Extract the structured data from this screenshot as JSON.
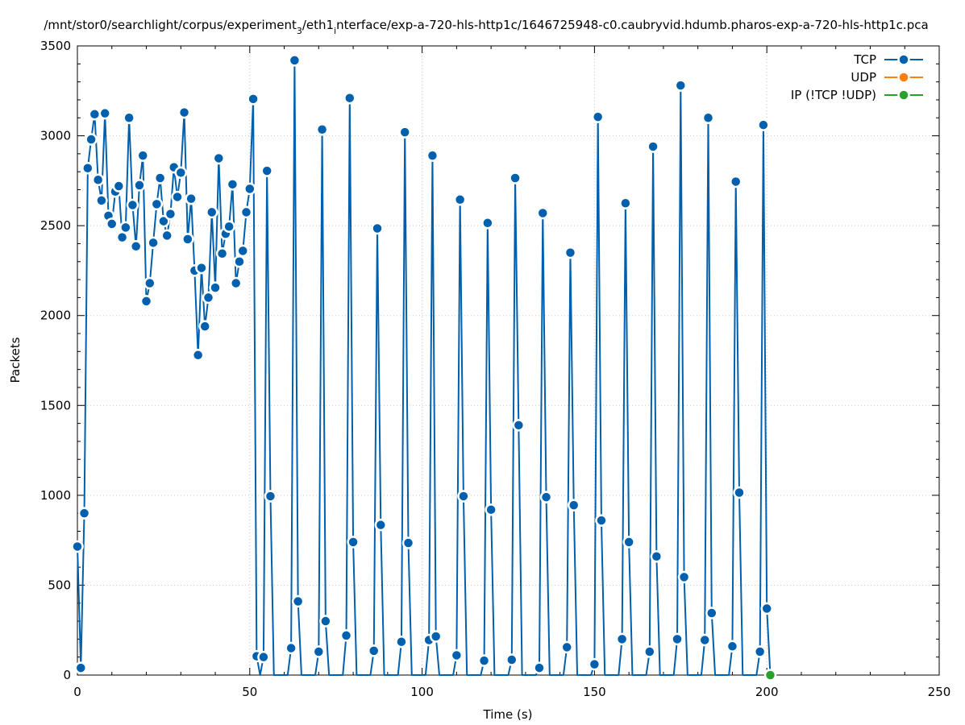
{
  "chart_data": {
    "type": "line",
    "title": "/mnt/stor0/searchlight/corpus/experiment_3/eth1_interface/exp-a-720-hls-http1c/1646725948-c0.caubryvid.hdumb.pharos-exp-a-720-hls-http1c.pcap",
    "title_parts": {
      "a": "/mnt/stor0/searchlight/corpus/experiment",
      "sub1": "3",
      "b": "/eth1",
      "sub2": "i",
      "c": "nterface/exp-a-720-hls-http1c/1646725948-c0.caubryvid.hdumb.pharos-exp-a-720-hls-http1c.pca"
    },
    "xlabel": "Time (s)",
    "ylabel": "Packets",
    "xlim": [
      0,
      250
    ],
    "ylim": [
      0,
      3500
    ],
    "xticks": [
      "0",
      "50",
      "100",
      "150",
      "200",
      "250"
    ],
    "yticks": [
      "0",
      "500",
      "1000",
      "1500",
      "2000",
      "2500",
      "3000",
      "3500"
    ],
    "grid": true,
    "legend_position": "top-right",
    "series": [
      {
        "name": "TCP",
        "color": "#0060ad",
        "points": [
          [
            0,
            715
          ],
          [
            1,
            40
          ],
          [
            2,
            900
          ],
          [
            3,
            2820
          ],
          [
            4,
            2980
          ],
          [
            5,
            3120
          ],
          [
            6,
            2755
          ],
          [
            7,
            2640
          ],
          [
            8,
            3125
          ],
          [
            9,
            2555
          ],
          [
            10,
            2510
          ],
          [
            11,
            2690
          ],
          [
            12,
            2720
          ],
          [
            13,
            2435
          ],
          [
            14,
            2490
          ],
          [
            15,
            3100
          ],
          [
            16,
            2615
          ],
          [
            17,
            2385
          ],
          [
            18,
            2725
          ],
          [
            19,
            2890
          ],
          [
            20,
            2080
          ],
          [
            21,
            2180
          ],
          [
            22,
            2405
          ],
          [
            23,
            2620
          ],
          [
            24,
            2765
          ],
          [
            25,
            2525
          ],
          [
            26,
            2445
          ],
          [
            27,
            2565
          ],
          [
            28,
            2825
          ],
          [
            29,
            2660
          ],
          [
            30,
            2795
          ],
          [
            31,
            3130
          ],
          [
            32,
            2425
          ],
          [
            33,
            2650
          ],
          [
            34,
            2250
          ],
          [
            35,
            1780
          ],
          [
            36,
            2265
          ],
          [
            37,
            1940
          ],
          [
            38,
            2100
          ],
          [
            39,
            2575
          ],
          [
            40,
            2155
          ],
          [
            41,
            2875
          ],
          [
            42,
            2345
          ],
          [
            43,
            2455
          ],
          [
            44,
            2495
          ],
          [
            45,
            2730
          ],
          [
            46,
            2180
          ],
          [
            47,
            2300
          ],
          [
            48,
            2360
          ],
          [
            49,
            2575
          ],
          [
            50,
            2705
          ],
          [
            51,
            3205
          ],
          [
            52,
            105
          ],
          [
            53,
            0
          ],
          [
            54,
            100
          ],
          [
            55,
            2805
          ],
          [
            56,
            995
          ],
          [
            57,
            0
          ],
          [
            61,
            0
          ],
          [
            62,
            150
          ],
          [
            63,
            3420
          ],
          [
            64,
            410
          ],
          [
            65,
            0
          ],
          [
            69,
            0
          ],
          [
            70,
            130
          ],
          [
            71,
            3035
          ],
          [
            72,
            300
          ],
          [
            73,
            0
          ],
          [
            77,
            0
          ],
          [
            78,
            220
          ],
          [
            79,
            3210
          ],
          [
            80,
            740
          ],
          [
            81,
            0
          ],
          [
            85,
            0
          ],
          [
            86,
            135
          ],
          [
            87,
            2485
          ],
          [
            88,
            835
          ],
          [
            89,
            0
          ],
          [
            93,
            0
          ],
          [
            94,
            185
          ],
          [
            95,
            3020
          ],
          [
            96,
            735
          ],
          [
            97,
            0
          ],
          [
            101,
            0
          ],
          [
            102,
            195
          ],
          [
            103,
            2890
          ],
          [
            104,
            215
          ],
          [
            105,
            0
          ],
          [
            109,
            0
          ],
          [
            110,
            110
          ],
          [
            111,
            2645
          ],
          [
            112,
            995
          ],
          [
            113,
            0
          ],
          [
            117,
            0
          ],
          [
            118,
            80
          ],
          [
            119,
            2515
          ],
          [
            120,
            920
          ],
          [
            121,
            0
          ],
          [
            125,
            0
          ],
          [
            126,
            85
          ],
          [
            127,
            2765
          ],
          [
            128,
            1390
          ],
          [
            129,
            0
          ],
          [
            133,
            0
          ],
          [
            134,
            40
          ],
          [
            135,
            2570
          ],
          [
            136,
            990
          ],
          [
            137,
            0
          ],
          [
            141,
            0
          ],
          [
            142,
            155
          ],
          [
            143,
            2350
          ],
          [
            144,
            945
          ],
          [
            145,
            0
          ],
          [
            149,
            0
          ],
          [
            150,
            60
          ],
          [
            151,
            3105
          ],
          [
            152,
            860
          ],
          [
            153,
            0
          ],
          [
            157,
            0
          ],
          [
            158,
            200
          ],
          [
            159,
            2625
          ],
          [
            160,
            740
          ],
          [
            161,
            0
          ],
          [
            165,
            0
          ],
          [
            166,
            130
          ],
          [
            167,
            2940
          ],
          [
            168,
            660
          ],
          [
            169,
            0
          ],
          [
            173,
            0
          ],
          [
            174,
            200
          ],
          [
            175,
            3280
          ],
          [
            176,
            545
          ],
          [
            177,
            0
          ],
          [
            181,
            0
          ],
          [
            182,
            195
          ],
          [
            183,
            3100
          ],
          [
            184,
            345
          ],
          [
            185,
            0
          ],
          [
            189,
            0
          ],
          [
            190,
            160
          ],
          [
            191,
            2745
          ],
          [
            192,
            1015
          ],
          [
            193,
            0
          ],
          [
            197,
            0
          ],
          [
            198,
            130
          ],
          [
            199,
            3060
          ],
          [
            200,
            370
          ],
          [
            201,
            0
          ]
        ]
      },
      {
        "name": "UDP",
        "color": "#ff7f0e",
        "points": []
      },
      {
        "name": "IP (!TCP  !UDP)",
        "color": "#2ca02c",
        "points": [
          [
            201,
            0
          ]
        ]
      }
    ]
  }
}
